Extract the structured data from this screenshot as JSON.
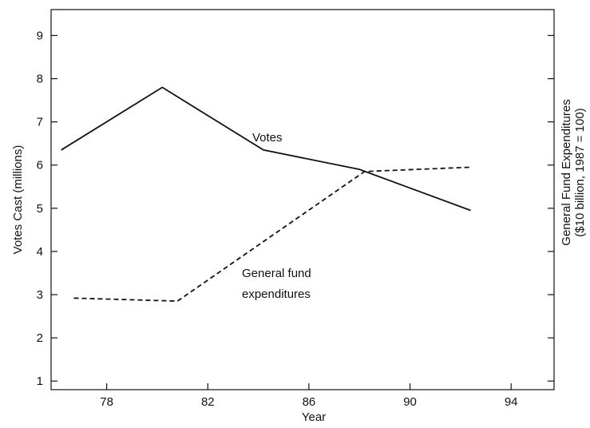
{
  "chart_data": {
    "type": "line",
    "title": "",
    "xlabel": "Year",
    "ylabel": "Votes Cast (millions)",
    "y2label_line1": "General Fund Expenditures",
    "y2label_line2": "($10 billion, 1987 = 100)",
    "xlim": [
      75.8,
      95.7
    ],
    "ylim": [
      0.8,
      9.6
    ],
    "x_ticks": [
      78,
      82,
      86,
      90,
      94
    ],
    "y_ticks": [
      1,
      2,
      3,
      4,
      5,
      6,
      7,
      8,
      9
    ],
    "grid": false,
    "series": [
      {
        "name": "Votes",
        "style": "solid",
        "x": [
          76.2,
          80.2,
          84.2,
          88.0,
          92.4
        ],
        "y": [
          6.35,
          7.8,
          6.35,
          5.9,
          4.95
        ]
      },
      {
        "name": "General fund expenditures",
        "style": "dashed",
        "x": [
          76.7,
          80.8,
          88.2,
          92.4
        ],
        "y": [
          2.92,
          2.85,
          5.85,
          5.95
        ]
      }
    ],
    "annotations": [
      {
        "text": "Votes",
        "series": 0
      },
      {
        "text": "General fund",
        "series": 1
      },
      {
        "text": "expenditures",
        "series": 1
      }
    ]
  }
}
